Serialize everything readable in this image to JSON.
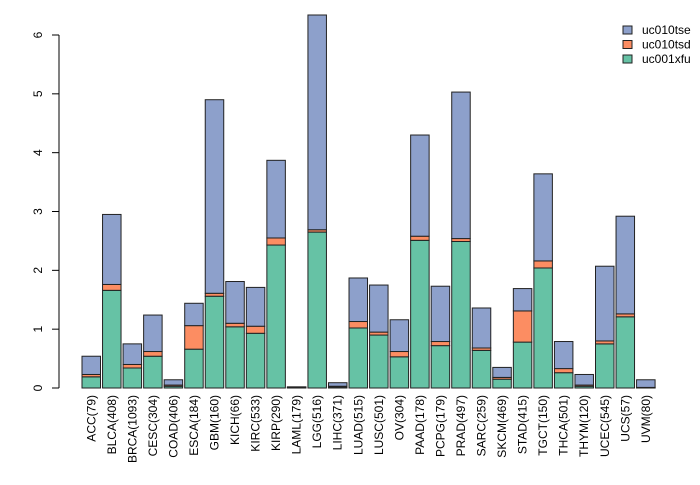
{
  "chart_data": {
    "type": "bar",
    "stacked": true,
    "title": "",
    "xlabel": "",
    "ylabel": "",
    "ylim": [
      0,
      6
    ],
    "yticks": [
      0,
      1,
      2,
      3,
      4,
      5,
      6
    ],
    "grid": false,
    "legend_position": "top-right",
    "categories": [
      "ACC(79)",
      "BLCA(408)",
      "BRCA(1093)",
      "CESC(304)",
      "COAD(406)",
      "ESCA(184)",
      "GBM(160)",
      "KICH(66)",
      "KIRC(533)",
      "KIRP(290)",
      "LAML(179)",
      "LGG(516)",
      "LIHC(371)",
      "LUAD(515)",
      "LUSC(501)",
      "OV(304)",
      "PAAD(178)",
      "PCPG(179)",
      "PRAD(497)",
      "SARC(259)",
      "SKCM(469)",
      "STAD(415)",
      "TGCT(150)",
      "THCA(501)",
      "THYM(120)",
      "UCEC(545)",
      "UCS(57)",
      "UVM(80)"
    ],
    "series": [
      {
        "name": "uc001xfu",
        "color": "#66c2a5",
        "values": [
          0.19,
          1.66,
          0.34,
          0.54,
          0.03,
          0.66,
          1.56,
          1.04,
          0.93,
          2.43,
          0.01,
          2.65,
          0.02,
          1.02,
          0.9,
          0.53,
          2.51,
          0.72,
          2.49,
          0.64,
          0.15,
          0.78,
          2.04,
          0.26,
          0.03,
          0.75,
          1.21,
          0.01
        ]
      },
      {
        "name": "uc010tsd",
        "color": "#fc8d62",
        "values": [
          0.04,
          0.1,
          0.06,
          0.08,
          0.02,
          0.4,
          0.05,
          0.06,
          0.12,
          0.12,
          0.0,
          0.04,
          0.01,
          0.11,
          0.05,
          0.09,
          0.07,
          0.07,
          0.05,
          0.04,
          0.03,
          0.53,
          0.12,
          0.07,
          0.02,
          0.05,
          0.05,
          0.0
        ]
      },
      {
        "name": "uc010tse",
        "color": "#8da0cb",
        "values": [
          0.31,
          1.19,
          0.35,
          0.62,
          0.09,
          0.38,
          3.29,
          0.71,
          0.66,
          1.32,
          0.01,
          3.65,
          0.06,
          0.74,
          0.8,
          0.54,
          1.72,
          0.94,
          2.49,
          0.68,
          0.17,
          0.38,
          1.48,
          0.46,
          0.18,
          1.27,
          1.66,
          0.13
        ]
      }
    ]
  }
}
